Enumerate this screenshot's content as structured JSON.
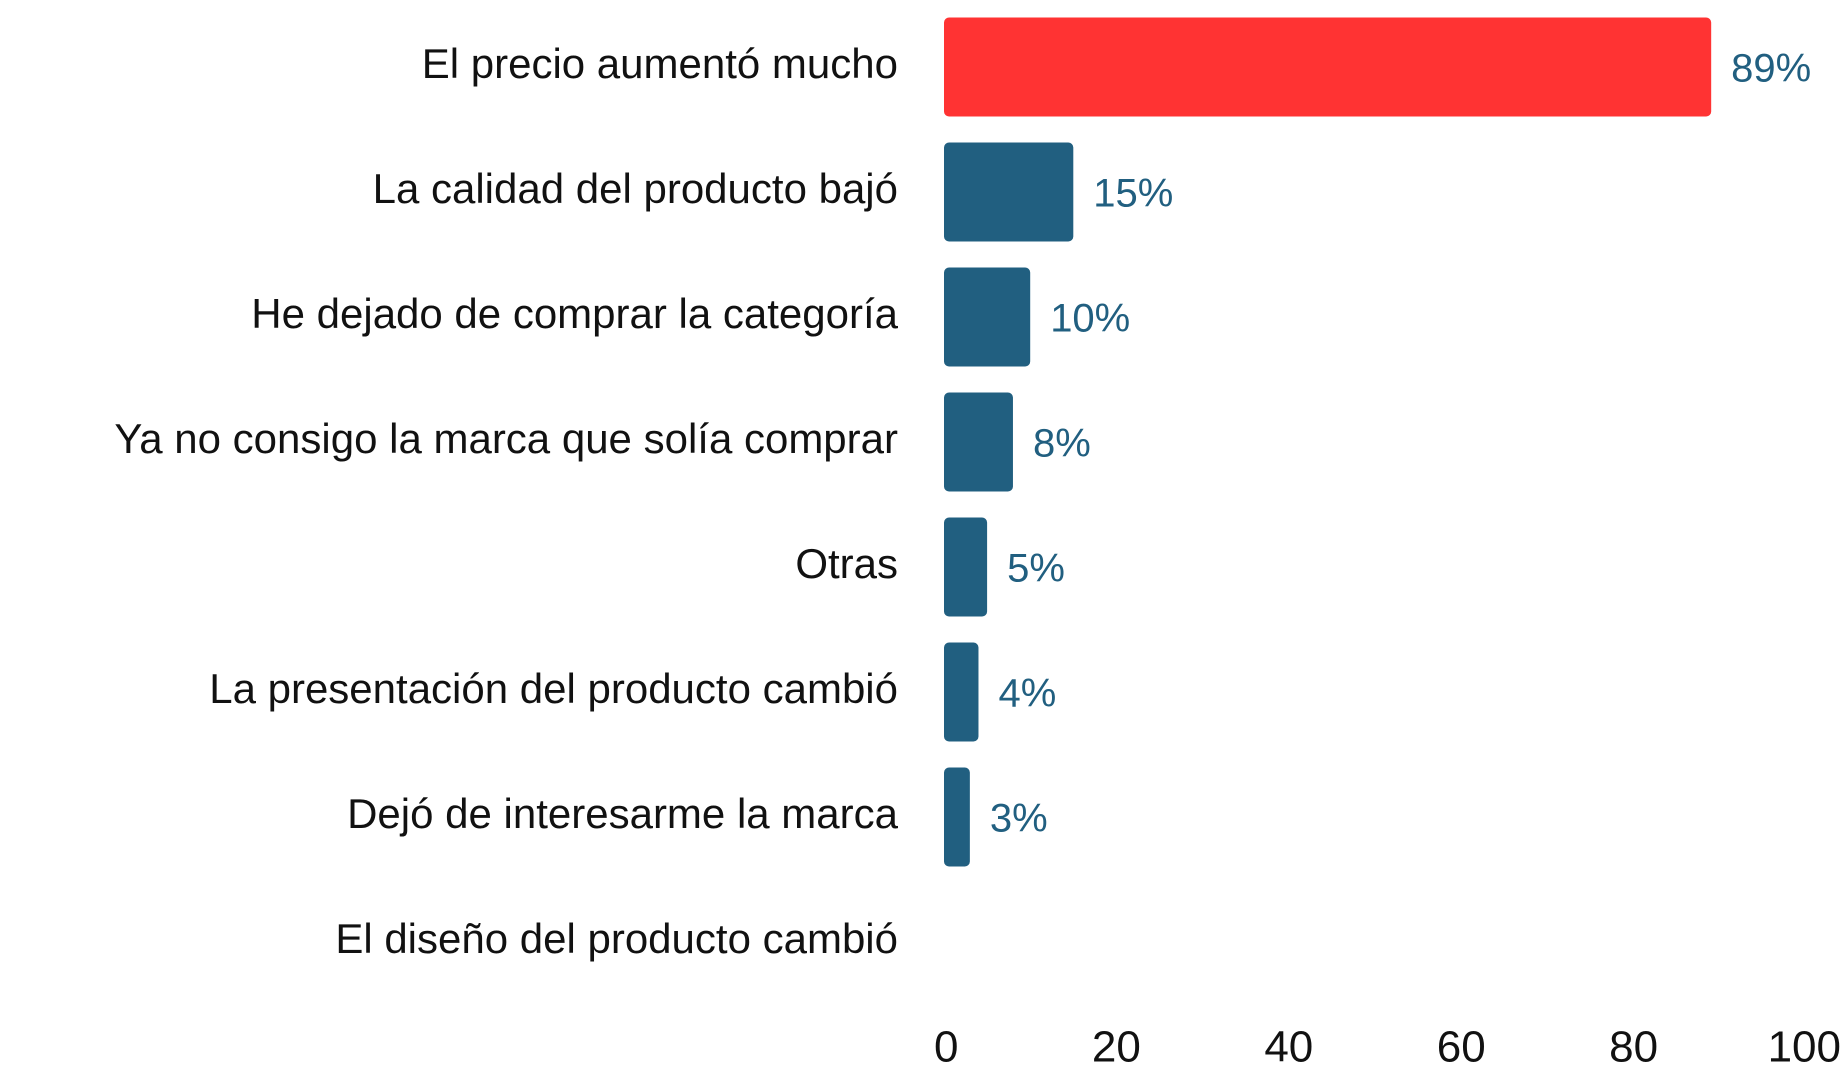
{
  "chart_data": {
    "type": "barh",
    "categories": [
      "El precio aumentó mucho",
      "La calidad del producto bajó",
      "He dejado de comprar la categoría",
      "Ya no consigo la marca que solía comprar",
      "Otras",
      "La presentación del producto cambió",
      "Dejó de interesarme la marca",
      "El diseño del producto cambió"
    ],
    "values": [
      89,
      15,
      10,
      8,
      5,
      4,
      3,
      null
    ],
    "value_labels": [
      "89%",
      "15%",
      "10%",
      "8%",
      "5%",
      "4%",
      "3%",
      null
    ],
    "colors": [
      "#ff3333",
      "#215f80",
      "#215f80",
      "#215f80",
      "#215f80",
      "#215f80",
      "#215f80",
      "#215f80"
    ],
    "label_color": "#215f80",
    "xlim": [
      0,
      100
    ],
    "xticks": [
      0,
      20,
      40,
      60,
      80,
      100
    ],
    "grid": false
  }
}
